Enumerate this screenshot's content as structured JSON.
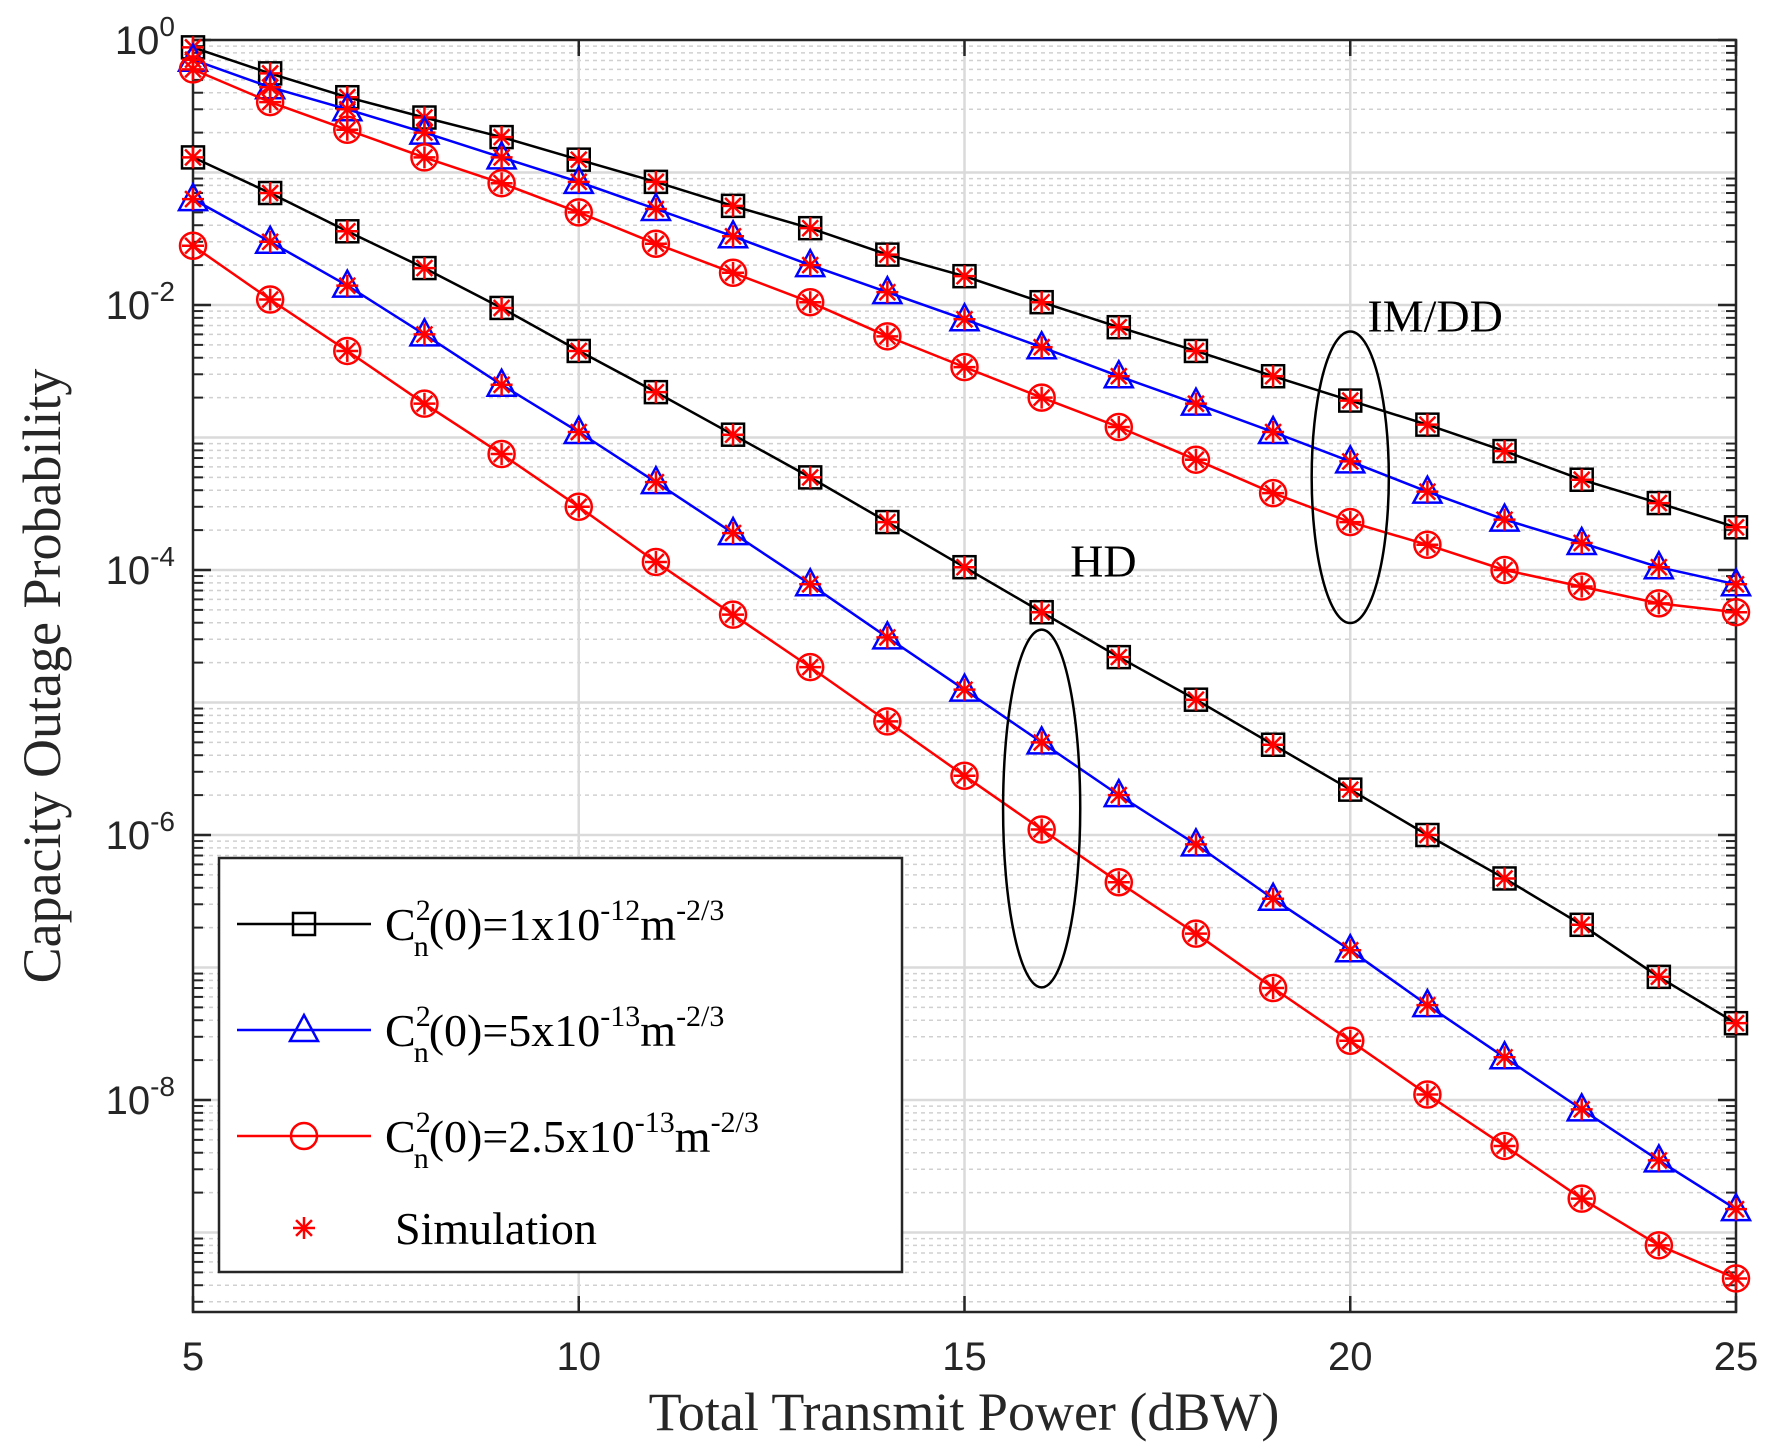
{
  "chart_data": {
    "type": "line",
    "xlabel": "Total Transmit Power (dBW)",
    "ylabel": "Capacity Outage Probability",
    "xlim": [
      5,
      25
    ],
    "ylim_log10": [
      -9.6,
      0
    ],
    "yscale": "log",
    "grid": true,
    "x_ticks": [
      5,
      10,
      15,
      20,
      25
    ],
    "y_ticks": [
      {
        "exp": 0,
        "base": "10",
        "sup": "0"
      },
      {
        "exp": -2,
        "base": "10",
        "sup": "-2"
      },
      {
        "exp": -4,
        "base": "10",
        "sup": "-4"
      },
      {
        "exp": -6,
        "base": "10",
        "sup": "-6"
      },
      {
        "exp": -8,
        "base": "10",
        "sup": "-8"
      }
    ],
    "x": [
      5,
      6,
      7,
      8,
      9,
      10,
      11,
      12,
      13,
      14,
      15,
      16,
      17,
      18,
      19,
      20,
      21,
      22,
      23,
      24,
      25
    ],
    "series": [
      {
        "name": "IM/DD, Cn2(0)=1x10^-12 m^-2/3",
        "group": "IM/DD",
        "color": "#000000",
        "marker": "square",
        "values": [
          0.88,
          0.56,
          0.37,
          0.26,
          0.185,
          0.125,
          0.085,
          0.056,
          0.038,
          0.024,
          0.0165,
          0.0105,
          0.0068,
          0.0045,
          0.0029,
          0.0019,
          0.00125,
          0.00079,
          0.00048,
          0.00032,
          0.00021
        ]
      },
      {
        "name": "IM/DD, Cn2(0)=5x10^-13 m^-2/3",
        "group": "IM/DD",
        "color": "#0000ff",
        "marker": "triangle",
        "values": [
          0.71,
          0.44,
          0.3,
          0.2,
          0.13,
          0.085,
          0.053,
          0.033,
          0.02,
          0.0125,
          0.0078,
          0.0048,
          0.0029,
          0.0018,
          0.0011,
          0.00066,
          0.00039,
          0.00024,
          0.00016,
          0.000105,
          7.8e-05
        ]
      },
      {
        "name": "IM/DD, Cn2(0)=2.5x10^-13 m^-2/3",
        "group": "IM/DD",
        "color": "#ff0000",
        "marker": "circle",
        "values": [
          0.6,
          0.34,
          0.21,
          0.13,
          0.083,
          0.05,
          0.029,
          0.0175,
          0.0105,
          0.0058,
          0.0034,
          0.002,
          0.0012,
          0.00068,
          0.00038,
          0.00023,
          0.000155,
          0.0001,
          7.5e-05,
          5.6e-05,
          4.8e-05
        ]
      },
      {
        "name": "HD, Cn2(0)=1x10^-12 m^-2/3",
        "group": "HD",
        "color": "#000000",
        "marker": "square",
        "values": [
          0.13,
          0.07,
          0.036,
          0.019,
          0.0095,
          0.0045,
          0.0022,
          0.00105,
          0.0005,
          0.00023,
          0.000105,
          4.8e-05,
          2.2e-05,
          1.05e-05,
          4.8e-06,
          2.2e-06,
          1e-06,
          4.7e-07,
          2.1e-07,
          8.5e-08,
          3.8e-08
        ]
      },
      {
        "name": "HD, Cn2(0)=5x10^-13 m^-2/3",
        "group": "HD",
        "color": "#0000ff",
        "marker": "triangle",
        "values": [
          0.063,
          0.03,
          0.014,
          0.006,
          0.0025,
          0.0011,
          0.00046,
          0.00019,
          7.8e-05,
          3.1e-05,
          1.25e-05,
          5e-06,
          2e-06,
          8.5e-07,
          3.3e-07,
          1.35e-07,
          5.2e-08,
          2.1e-08,
          8.5e-09,
          3.5e-09,
          1.5e-09
        ]
      },
      {
        "name": "HD, Cn2(0)=2.5x10^-13 m^-2/3",
        "group": "HD",
        "color": "#ff0000",
        "marker": "circle",
        "values": [
          0.028,
          0.011,
          0.0045,
          0.0018,
          0.00075,
          0.0003,
          0.000115,
          4.6e-05,
          1.85e-05,
          7.2e-06,
          2.8e-06,
          1.1e-06,
          4.4e-07,
          1.8e-07,
          7e-08,
          2.8e-08,
          1.1e-08,
          4.5e-09,
          1.8e-09,
          8e-10,
          4.5e-10
        ]
      }
    ],
    "simulation_marker": "asterisk",
    "legend": {
      "position": "bottom-left",
      "entries": [
        {
          "color": "#000000",
          "marker": "square",
          "prefix": "C",
          "sup": "2",
          "sub": "n",
          "main": "(0)=1x10",
          "exp": "-12",
          "unit": "m",
          "unit_exp": "-2/3"
        },
        {
          "color": "#0000ff",
          "marker": "triangle",
          "prefix": "C",
          "sup": "2",
          "sub": "n",
          "main": "(0)=5x10",
          "exp": "-13",
          "unit": "m",
          "unit_exp": "-2/3"
        },
        {
          "color": "#ff0000",
          "marker": "circle",
          "prefix": "C",
          "sup": "2",
          "sub": "n",
          "main": "(0)=2.5x10",
          "exp": "-13",
          "unit": "m",
          "unit_exp": "-2/3"
        },
        {
          "color": "#ff0000",
          "marker": "asterisk",
          "label": "Simulation"
        }
      ]
    },
    "annotations": [
      {
        "text": "IM/DD",
        "ellipse_x": 20,
        "ellipse_y_exp": -3.3,
        "ellipse_half_x_units": 0.5,
        "ellipse_half_y_decades": 1.1,
        "label_x": 21.1,
        "label_y_exp": -2.2
      },
      {
        "text": "HD",
        "ellipse_x": 16,
        "ellipse_y_exp": -5.8,
        "ellipse_half_x_units": 0.5,
        "ellipse_half_y_decades": 1.35,
        "label_x": 16.8,
        "label_y_exp": -4.05
      }
    ]
  }
}
